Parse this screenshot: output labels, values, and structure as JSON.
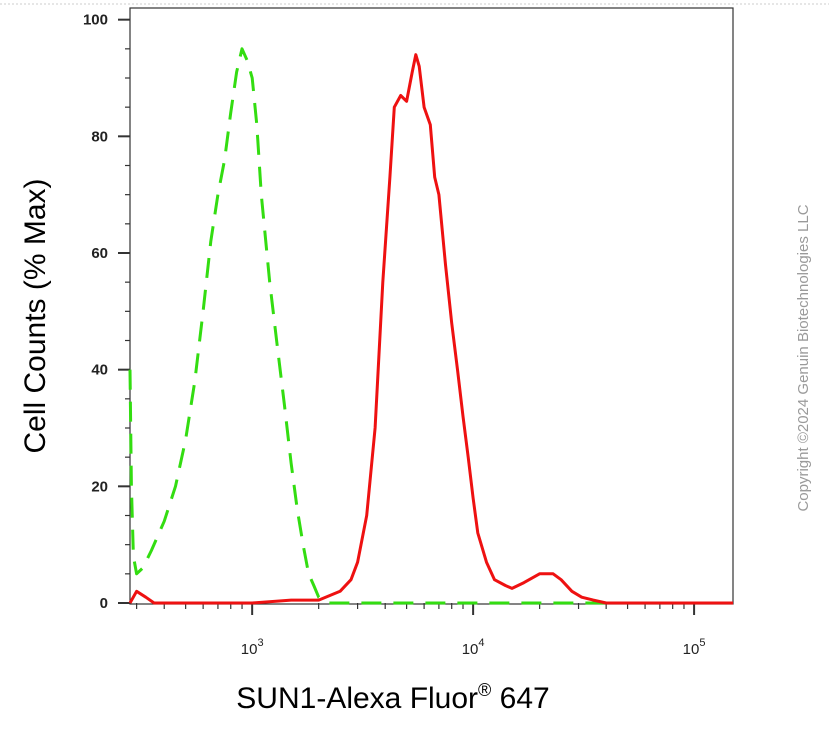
{
  "chart_data": {
    "type": "line",
    "xlabel": "SUN1-Alexa Fluor",
    "xlabel_sup": "®",
    "xlabel_suffix": " 647",
    "ylabel": "Cell Counts (% Max)",
    "x_scale": "log",
    "xlim": [
      280,
      150000
    ],
    "ylim": [
      0,
      102
    ],
    "yticks": [
      {
        "value": 0,
        "label": "0"
      },
      {
        "value": 20,
        "label": "20"
      },
      {
        "value": 40,
        "label": "40"
      },
      {
        "value": 60,
        "label": "60"
      },
      {
        "value": 80,
        "label": "80"
      },
      {
        "value": 100,
        "label": "100"
      }
    ],
    "xticks": [
      {
        "value": 1000,
        "base": "10",
        "exp": "3"
      },
      {
        "value": 10000,
        "base": "10",
        "exp": "4"
      },
      {
        "value": 100000,
        "base": "10",
        "exp": "5"
      }
    ],
    "grid": false,
    "series": [
      {
        "color": "#33dd11",
        "style": "dashed",
        "points": [
          [
            280,
            40
          ],
          [
            284,
            20
          ],
          [
            290,
            8
          ],
          [
            300,
            5
          ],
          [
            320,
            6
          ],
          [
            350,
            9
          ],
          [
            400,
            14
          ],
          [
            450,
            20
          ],
          [
            500,
            28
          ],
          [
            550,
            38
          ],
          [
            600,
            50
          ],
          [
            650,
            62
          ],
          [
            700,
            70
          ],
          [
            750,
            76
          ],
          [
            800,
            84
          ],
          [
            850,
            91
          ],
          [
            900,
            95
          ],
          [
            950,
            93
          ],
          [
            1000,
            90
          ],
          [
            1050,
            82
          ],
          [
            1100,
            70
          ],
          [
            1200,
            55
          ],
          [
            1300,
            44
          ],
          [
            1400,
            34
          ],
          [
            1500,
            24
          ],
          [
            1600,
            16
          ],
          [
            1700,
            10
          ],
          [
            1800,
            5
          ],
          [
            1900,
            3
          ],
          [
            2000,
            1
          ],
          [
            2200,
            0
          ],
          [
            3000,
            0
          ],
          [
            10000,
            0
          ],
          [
            30000,
            0
          ],
          [
            150000,
            0
          ]
        ]
      },
      {
        "color": "#ee1111",
        "style": "solid",
        "points": [
          [
            280,
            0
          ],
          [
            300,
            2
          ],
          [
            330,
            1
          ],
          [
            360,
            0
          ],
          [
            700,
            0
          ],
          [
            1000,
            0
          ],
          [
            1500,
            0.5
          ],
          [
            2000,
            0.5
          ],
          [
            2500,
            2
          ],
          [
            2800,
            4
          ],
          [
            3000,
            7
          ],
          [
            3300,
            15
          ],
          [
            3600,
            30
          ],
          [
            3900,
            55
          ],
          [
            4200,
            73
          ],
          [
            4400,
            85
          ],
          [
            4700,
            87
          ],
          [
            5000,
            86
          ],
          [
            5300,
            91
          ],
          [
            5500,
            94
          ],
          [
            5700,
            92
          ],
          [
            6000,
            85
          ],
          [
            6400,
            82
          ],
          [
            6700,
            73
          ],
          [
            7000,
            70
          ],
          [
            7500,
            58
          ],
          [
            8000,
            48
          ],
          [
            8500,
            40
          ],
          [
            9000,
            32
          ],
          [
            9500,
            25
          ],
          [
            10000,
            18
          ],
          [
            10500,
            12
          ],
          [
            11500,
            7
          ],
          [
            12500,
            4
          ],
          [
            14000,
            3
          ],
          [
            15000,
            2.5
          ],
          [
            17000,
            3.5
          ],
          [
            20000,
            5
          ],
          [
            23000,
            5
          ],
          [
            25000,
            4
          ],
          [
            28000,
            2
          ],
          [
            31000,
            1
          ],
          [
            35000,
            0.5
          ],
          [
            40000,
            0
          ],
          [
            60000,
            0
          ],
          [
            150000,
            0
          ]
        ]
      }
    ]
  },
  "watermark": {
    "text": "Copyright ©2024 Genuin Biotechnologies LLC"
  }
}
